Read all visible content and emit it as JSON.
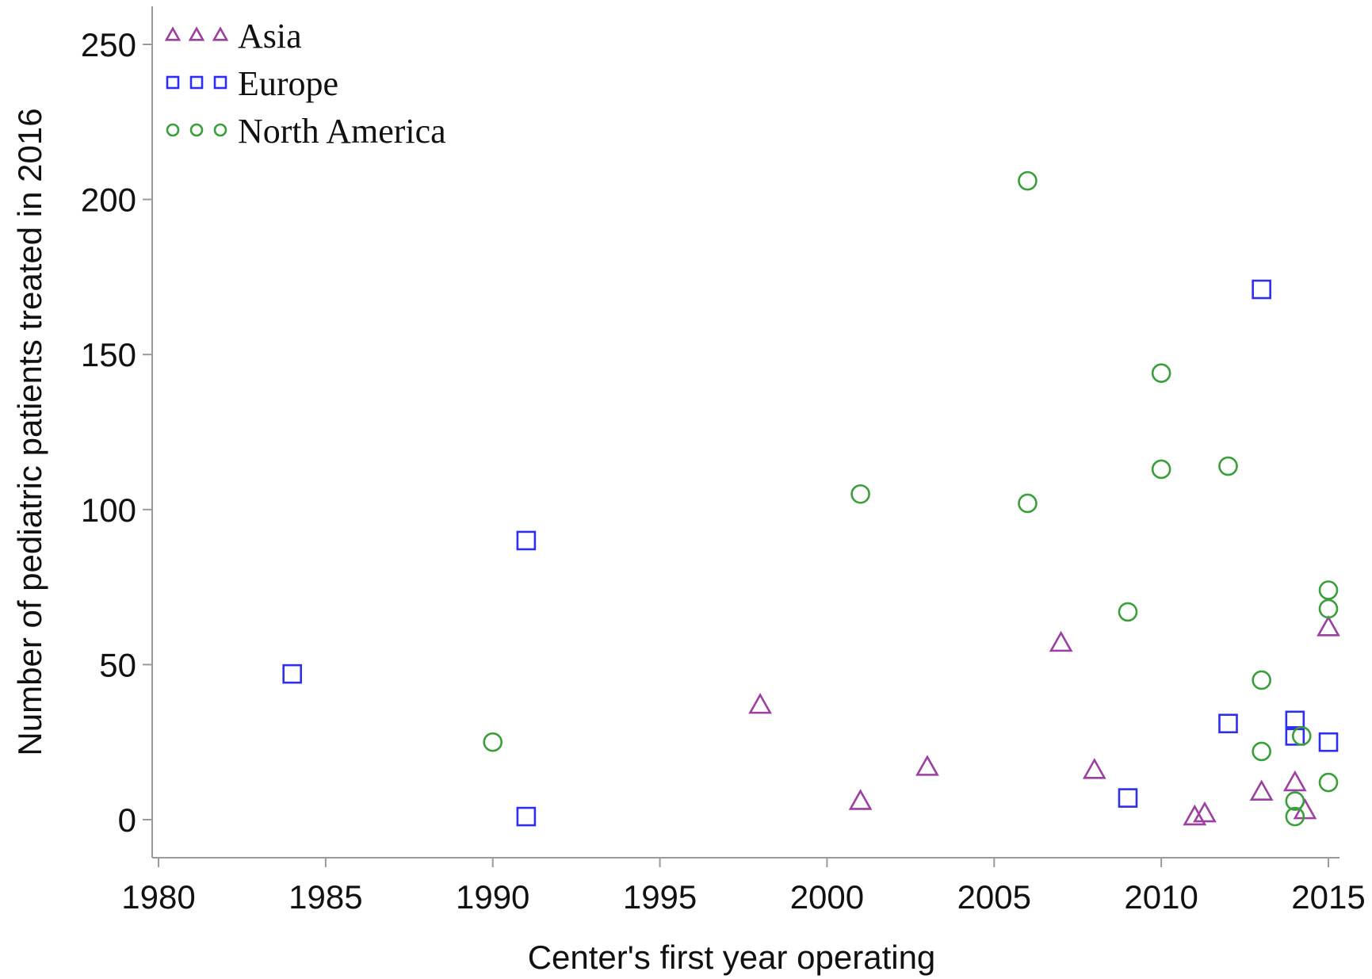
{
  "chart_data": {
    "type": "scatter",
    "title": "",
    "xlabel": "Center's first year operating",
    "ylabel": "Number of pediatric patients treated in 2016",
    "xlim": [
      1980,
      2015
    ],
    "ylim": [
      0,
      250
    ],
    "xticks": [
      1980,
      1985,
      1990,
      1995,
      2000,
      2005,
      2010,
      2015
    ],
    "yticks": [
      0,
      50,
      100,
      150,
      200,
      250
    ],
    "grid": false,
    "legend_position": "top-left",
    "series": [
      {
        "name": "Asia",
        "marker": "triangle",
        "color": "#9B3FA0",
        "points": [
          [
            1998,
            37
          ],
          [
            2001,
            6
          ],
          [
            2003,
            17
          ],
          [
            2007,
            57
          ],
          [
            2008,
            16
          ],
          [
            2011,
            1
          ],
          [
            2011.3,
            2
          ],
          [
            2013,
            9
          ],
          [
            2014,
            12
          ],
          [
            2014.3,
            3
          ],
          [
            2015,
            62
          ]
        ]
      },
      {
        "name": "Europe",
        "marker": "square",
        "color": "#2E2EEE",
        "points": [
          [
            1984,
            47
          ],
          [
            1991,
            90
          ],
          [
            1991,
            1
          ],
          [
            2009,
            7
          ],
          [
            2012,
            31
          ],
          [
            2013,
            171
          ],
          [
            2014,
            32
          ],
          [
            2014,
            27
          ],
          [
            2015,
            25
          ]
        ]
      },
      {
        "name": "North America",
        "marker": "circle",
        "color": "#3A9E3A",
        "points": [
          [
            1990,
            25
          ],
          [
            2001,
            105
          ],
          [
            2006,
            206
          ],
          [
            2006,
            102
          ],
          [
            2009,
            67
          ],
          [
            2010,
            144
          ],
          [
            2010,
            113
          ],
          [
            2012,
            114
          ],
          [
            2013,
            45
          ],
          [
            2013,
            22
          ],
          [
            2014,
            6
          ],
          [
            2014,
            1
          ],
          [
            2014.2,
            27
          ],
          [
            2015,
            74
          ],
          [
            2015,
            68
          ],
          [
            2015,
            12
          ]
        ]
      }
    ]
  }
}
